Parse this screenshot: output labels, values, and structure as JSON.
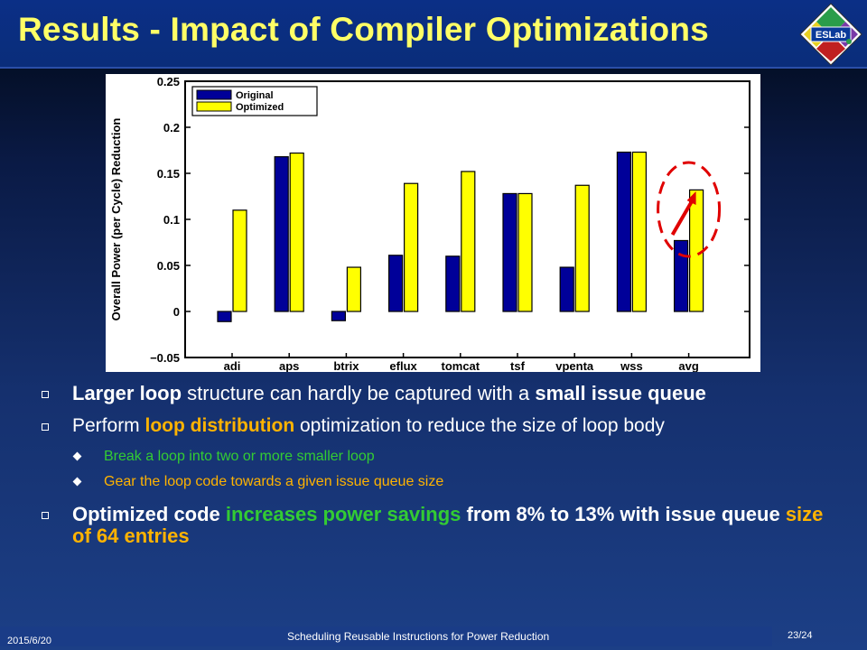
{
  "slide": {
    "title": "Results - Impact of Compiler Optimizations",
    "logo_text": "ESLab"
  },
  "colors": {
    "title": "#ffff66",
    "orange": "#ffb300",
    "green": "#33cc33",
    "original_bar": "#000099",
    "optimized_bar": "#ffff00",
    "annotation": "#e00000"
  },
  "bullets": {
    "b1": {
      "p1": "Larger loop",
      "p2": " structure can hardly be captured with a ",
      "p3": "small issue queue"
    },
    "b2": {
      "p1": "Perform ",
      "p2": "loop distribution",
      "p3": " optimization to reduce the size of loop body"
    },
    "b2_sub": [
      "Break a loop into two or more smaller loop",
      "Gear the loop code towards a given issue queue size"
    ],
    "b3": {
      "p1": "Optimized code ",
      "p2": "increases power savings",
      "p3": " from 8% to 13% with issue queue ",
      "p4": "size of 64 entries"
    }
  },
  "footer": {
    "date": "2015/6/20",
    "center": "Scheduling Reusable Instructions for Power Reduction",
    "page": "23/24"
  },
  "chart_data": {
    "type": "bar",
    "ylabel": "Overall Power (per Cycle) Reduction",
    "xlabel": "",
    "ylim": [
      -0.05,
      0.25
    ],
    "yticks": [
      -0.05,
      0,
      0.05,
      0.1,
      0.15,
      0.2,
      0.25
    ],
    "ytick_labels": [
      "−0.05",
      "0",
      "0.05",
      "0.1",
      "0.15",
      "0.2",
      "0.25"
    ],
    "categories": [
      "adi",
      "aps",
      "btrix",
      "eflux",
      "tomcat",
      "tsf",
      "vpenta",
      "wss",
      "avg"
    ],
    "series": [
      {
        "name": "Original",
        "values": [
          -0.011,
          0.168,
          -0.01,
          0.061,
          0.06,
          0.128,
          0.048,
          0.173,
          0.077
        ]
      },
      {
        "name": "Optimized",
        "values": [
          0.11,
          0.172,
          0.048,
          0.139,
          0.152,
          0.128,
          0.137,
          0.173,
          0.132
        ]
      }
    ],
    "legend": "top-left",
    "grid": false
  }
}
